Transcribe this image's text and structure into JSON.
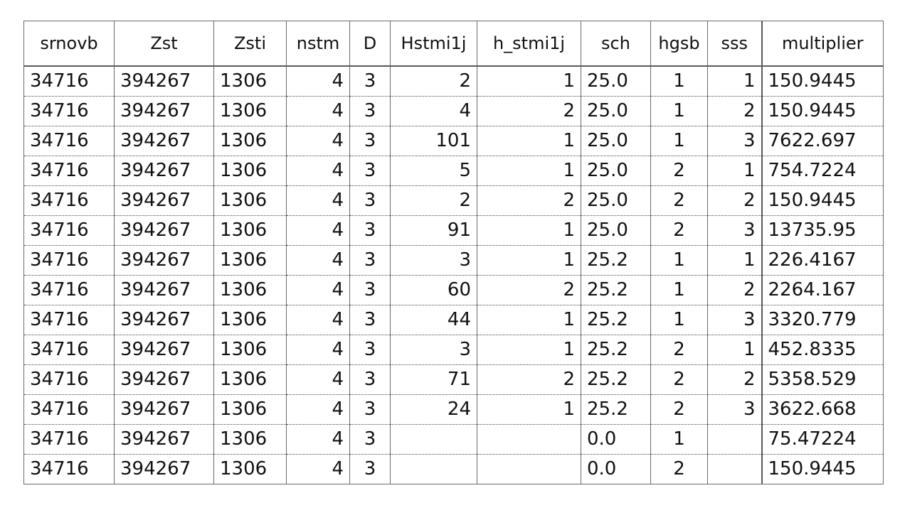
{
  "table": {
    "columns": [
      "srnovb",
      "Zst",
      "Zsti",
      "nstm",
      "D",
      "Hstmi1j",
      "h_stmi1j",
      "sch",
      "hgsb",
      "sss",
      "multiplier"
    ],
    "rows": [
      [
        "34716",
        "394267",
        "1306",
        "4",
        "3",
        "2",
        "1",
        "25.0",
        "1",
        "1",
        "150.9445"
      ],
      [
        "34716",
        "394267",
        "1306",
        "4",
        "3",
        "4",
        "2",
        "25.0",
        "1",
        "2",
        "150.9445"
      ],
      [
        "34716",
        "394267",
        "1306",
        "4",
        "3",
        "101",
        "1",
        "25.0",
        "1",
        "3",
        "7622.697"
      ],
      [
        "34716",
        "394267",
        "1306",
        "4",
        "3",
        "5",
        "1",
        "25.0",
        "2",
        "1",
        "754.7224"
      ],
      [
        "34716",
        "394267",
        "1306",
        "4",
        "3",
        "2",
        "2",
        "25.0",
        "2",
        "2",
        "150.9445"
      ],
      [
        "34716",
        "394267",
        "1306",
        "4",
        "3",
        "91",
        "1",
        "25.0",
        "2",
        "3",
        "13735.95"
      ],
      [
        "34716",
        "394267",
        "1306",
        "4",
        "3",
        "3",
        "1",
        "25.2",
        "1",
        "1",
        "226.4167"
      ],
      [
        "34716",
        "394267",
        "1306",
        "4",
        "3",
        "60",
        "2",
        "25.2",
        "1",
        "2",
        "2264.167"
      ],
      [
        "34716",
        "394267",
        "1306",
        "4",
        "3",
        "44",
        "1",
        "25.2",
        "1",
        "3",
        "3320.779"
      ],
      [
        "34716",
        "394267",
        "1306",
        "4",
        "3",
        "3",
        "1",
        "25.2",
        "2",
        "1",
        "452.8335"
      ],
      [
        "34716",
        "394267",
        "1306",
        "4",
        "3",
        "71",
        "2",
        "25.2",
        "2",
        "2",
        "5358.529"
      ],
      [
        "34716",
        "394267",
        "1306",
        "4",
        "3",
        "24",
        "1",
        "25.2",
        "2",
        "3",
        "3622.668"
      ],
      [
        "34716",
        "394267",
        "1306",
        "4",
        "3",
        "",
        "",
        "0.0",
        "1",
        "",
        "75.47224"
      ],
      [
        "34716",
        "394267",
        "1306",
        "4",
        "3",
        "",
        "",
        "0.0",
        "2",
        "",
        "150.9445"
      ]
    ]
  }
}
